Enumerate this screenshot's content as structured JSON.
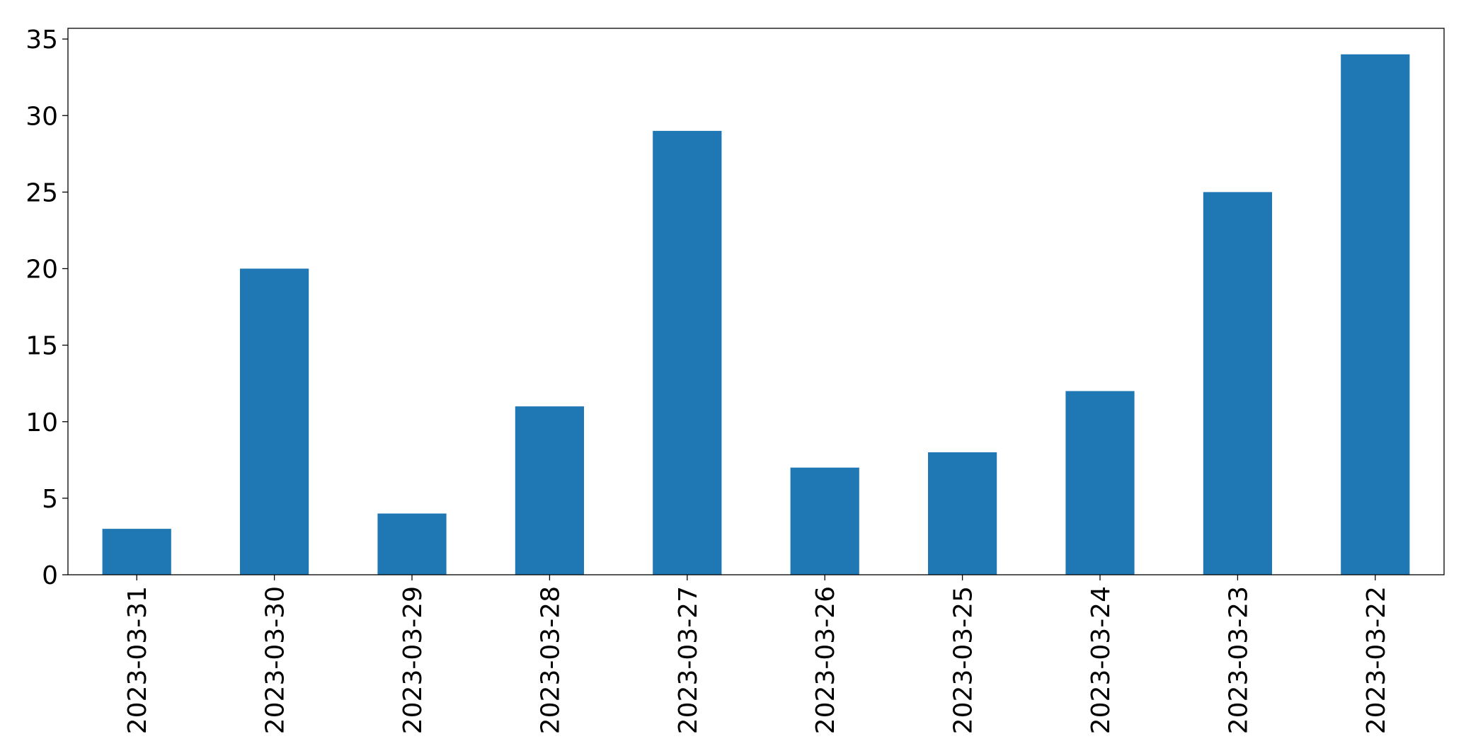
{
  "chart_data": {
    "type": "bar",
    "categories": [
      "2023-03-31",
      "2023-03-30",
      "2023-03-29",
      "2023-03-28",
      "2023-03-27",
      "2023-03-26",
      "2023-03-25",
      "2023-03-24",
      "2023-03-23",
      "2023-03-22"
    ],
    "values": [
      3,
      20,
      4,
      11,
      29,
      7,
      8,
      12,
      25,
      34
    ],
    "color": "#1f77b4",
    "ylim": [
      0,
      35.7
    ],
    "yticks": [
      0,
      5,
      10,
      15,
      20,
      25,
      30,
      35
    ],
    "grid": false
  }
}
